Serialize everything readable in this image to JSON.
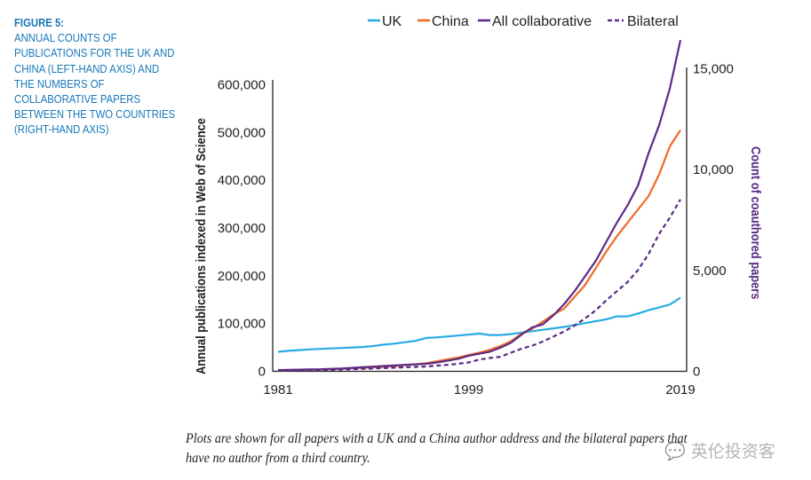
{
  "figure": {
    "label": "FIGURE 5:",
    "title": "ANNUAL COUNTS OF PUBLICATIONS FOR THE UK AND CHINA (LEFT-HAND AXIS) AND THE NUMBERS OF COLLABORATIVE PAPERS BETWEEN THE TWO COUNTRIES (RIGHT-HAND AXIS)",
    "note_line1": "Plots are shown for all papers with a UK and a China author address and the bilateral papers that",
    "note_line2": "have no author from a third country.",
    "watermark": "英伦投资客",
    "watermark_icon": "chat-bubble-icon"
  },
  "chart_data": {
    "type": "line",
    "title": "",
    "xlabel": "",
    "ylabel": "Annual publications indexed in Web of Science",
    "y2label": "Count of coauthored papers",
    "xlim": [
      1981,
      2019
    ],
    "ylim": [
      0,
      600000
    ],
    "y2lim": [
      0,
      15000
    ],
    "x_ticks": [
      "1981",
      "1999",
      "2019"
    ],
    "y_ticks": [
      "0",
      "100,000",
      "200,000",
      "300,000",
      "400,000",
      "500,000",
      "600,000"
    ],
    "y2_ticks": [
      "0",
      "5,000",
      "10,000",
      "15,000"
    ],
    "legend_position": "top",
    "grid": false,
    "x": [
      1981,
      1982,
      1983,
      1984,
      1985,
      1986,
      1987,
      1988,
      1989,
      1990,
      1991,
      1992,
      1993,
      1994,
      1995,
      1996,
      1997,
      1998,
      1999,
      2000,
      2001,
      2002,
      2003,
      2004,
      2005,
      2006,
      2007,
      2008,
      2009,
      2010,
      2011,
      2012,
      2013,
      2014,
      2015,
      2016,
      2017,
      2018,
      2019
    ],
    "series": [
      {
        "name": "UK",
        "axis": "left",
        "color": "#29abe2",
        "dash": false,
        "values": [
          40000,
          42000,
          43500,
          45000,
          46000,
          47000,
          48000,
          49000,
          50000,
          52000,
          55000,
          57000,
          60000,
          63000,
          69000,
          70000,
          72000,
          74000,
          76000,
          78000,
          75000,
          75000,
          77000,
          80000,
          83000,
          86000,
          89000,
          92000,
          96000,
          100000,
          104000,
          108000,
          114000,
          114000,
          120000,
          127000,
          133000,
          139000,
          153000
        ]
      },
      {
        "name": "China",
        "axis": "left",
        "color": "#f06a25",
        "dash": false,
        "values": [
          1000,
          1500,
          2000,
          2500,
          3000,
          3500,
          4500,
          5500,
          6500,
          7500,
          8500,
          10000,
          12000,
          14000,
          16000,
          20000,
          24000,
          28000,
          33000,
          38000,
          44000,
          52000,
          62000,
          78000,
          88000,
          103000,
          118000,
          130000,
          155000,
          180000,
          215000,
          250000,
          282000,
          310000,
          338000,
          366000,
          412000,
          470000,
          504000
        ]
      },
      {
        "name": "All collaborative",
        "axis": "right",
        "color": "#5b2a86",
        "dash": false,
        "values": [
          40,
          50,
          60,
          70,
          80,
          100,
          120,
          150,
          180,
          210,
          240,
          270,
          300,
          320,
          350,
          420,
          500,
          600,
          750,
          850,
          950,
          1150,
          1400,
          1800,
          2150,
          2300,
          2750,
          3300,
          3950,
          4700,
          5450,
          6400,
          7350,
          8200,
          9200,
          10800,
          12200,
          14000,
          16400
        ]
      },
      {
        "name": "Bilateral",
        "axis": "right",
        "color": "#5b2a86",
        "dash": true,
        "values": [
          20,
          25,
          30,
          35,
          40,
          50,
          60,
          80,
          100,
          120,
          140,
          160,
          180,
          200,
          220,
          260,
          300,
          350,
          420,
          560,
          640,
          700,
          900,
          1100,
          1250,
          1450,
          1700,
          1950,
          2250,
          2600,
          3000,
          3500,
          3950,
          4400,
          5000,
          5800,
          6800,
          7600,
          8500
        ]
      }
    ]
  }
}
